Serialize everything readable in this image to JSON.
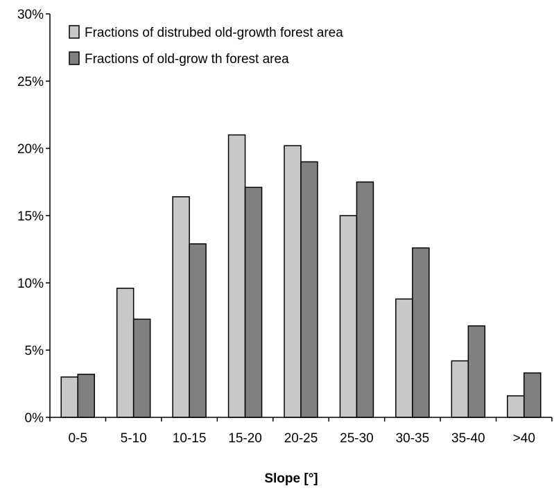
{
  "chart_data": {
    "type": "bar",
    "title": "",
    "xlabel": "Slope [°]",
    "ylabel": "",
    "categories": [
      "0-5",
      "5-10",
      "10-15",
      "15-20",
      "20-25",
      "25-30",
      "30-35",
      "35-40",
      ">40"
    ],
    "series": [
      {
        "name": "Fractions of distrubed old-growth forest area",
        "color": "#c8c8c8",
        "values": [
          3.0,
          9.6,
          16.4,
          21.0,
          20.2,
          15.0,
          8.8,
          4.2,
          1.6
        ]
      },
      {
        "name": "Fractions of old-grow th forest area",
        "color": "#808080",
        "values": [
          3.2,
          7.3,
          12.9,
          17.1,
          19.0,
          17.5,
          12.6,
          6.8,
          3.3
        ]
      }
    ],
    "ylim": [
      0,
      30
    ],
    "yticks": [
      0,
      5,
      10,
      15,
      20,
      25,
      30
    ],
    "ytick_labels": [
      "0%",
      "5%",
      "10%",
      "15%",
      "20%",
      "25%",
      "30%"
    ],
    "grid": false,
    "legend_position": "top-left"
  }
}
